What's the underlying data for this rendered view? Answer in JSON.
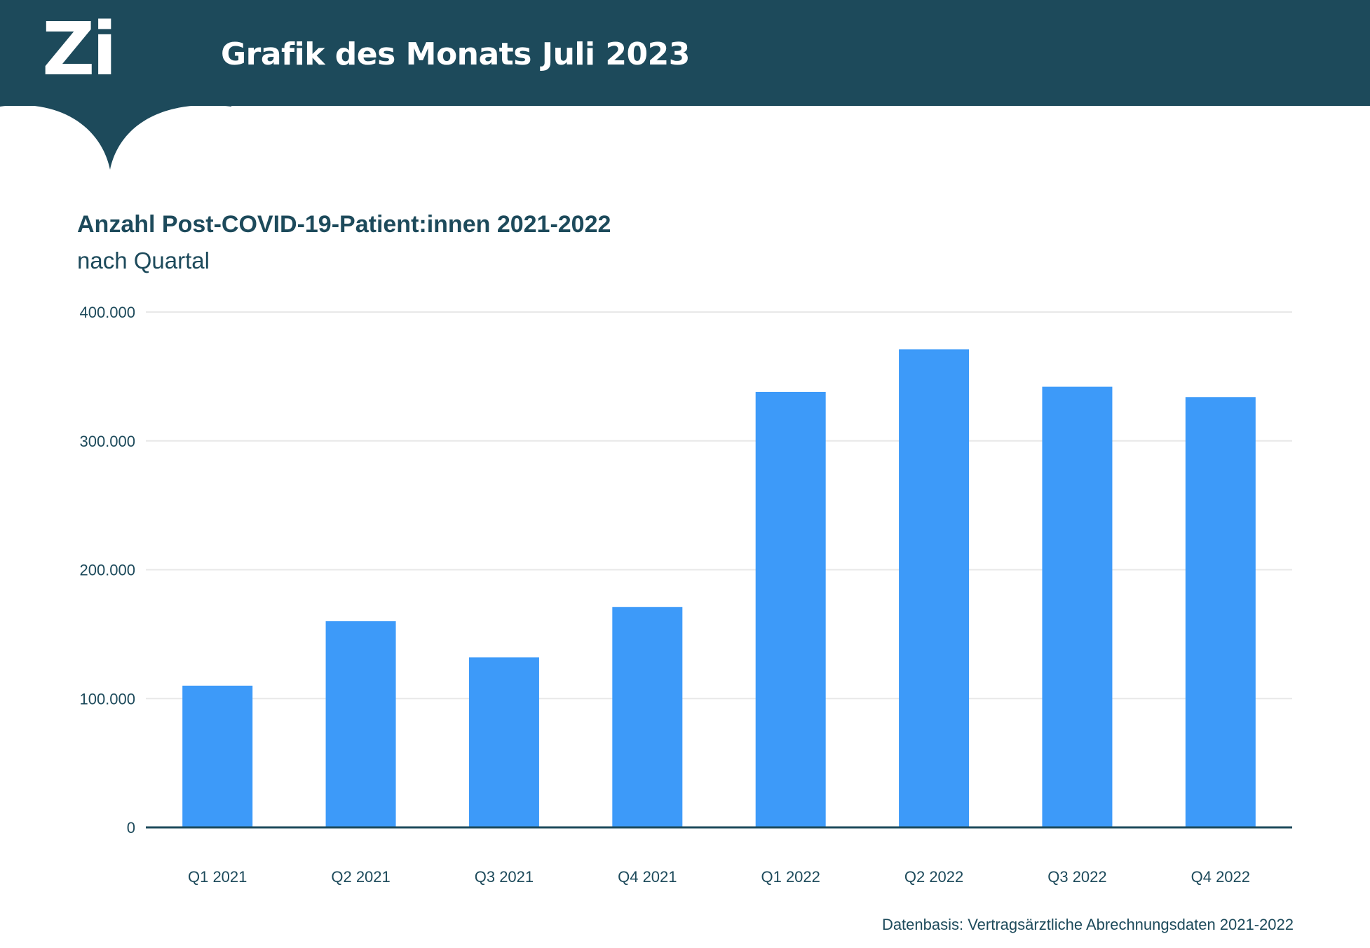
{
  "header": {
    "logo_text": "Zi",
    "title": "Grafik des Monats Juli 2023"
  },
  "chart_data": {
    "type": "bar",
    "title": "Anzahl Post-COVID-19-Patient:innen 2021-2022",
    "subtitle": "nach Quartal",
    "categories": [
      "Q1 2021",
      "Q2 2021",
      "Q3 2021",
      "Q4 2021",
      "Q1 2022",
      "Q2 2022",
      "Q3 2022",
      "Q4 2022"
    ],
    "values": [
      110000,
      160000,
      132000,
      171000,
      338000,
      371000,
      342000,
      334000
    ],
    "ylim": [
      0,
      400000
    ],
    "yticks": [
      0,
      100000,
      200000,
      300000,
      400000
    ],
    "ytick_labels": [
      "0",
      "100.000",
      "200.000",
      "300.000",
      "400.000"
    ],
    "xlabel": "",
    "ylabel": "",
    "grid": true,
    "legend": false,
    "bar_color": "#3d9af9"
  },
  "footer": {
    "source": "Datenbasis: Vertragsärztliche Abrechnungsdaten 2021-2022"
  },
  "colors": {
    "header_bg": "#1d4a5b",
    "bar": "#3d9af9",
    "grid": "#e8e8e8",
    "text": "#1d4a5b"
  }
}
